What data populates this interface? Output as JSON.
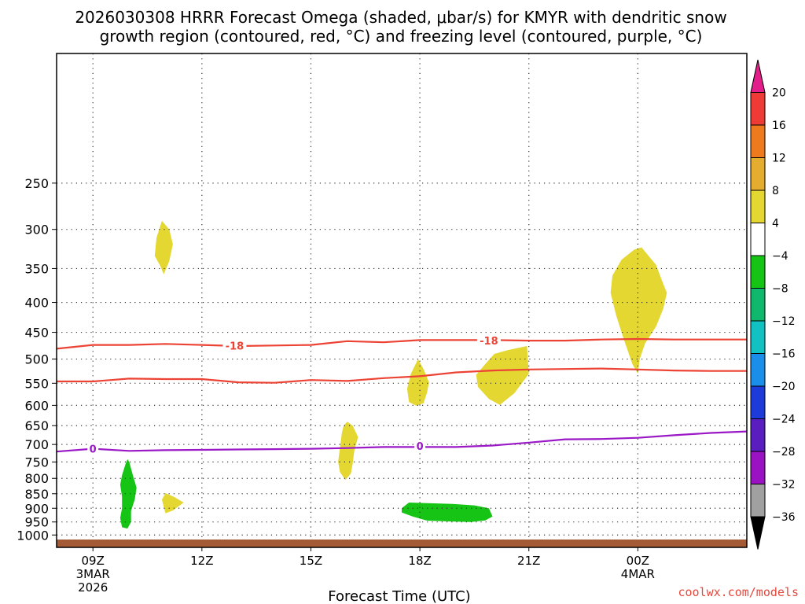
{
  "chart_data": {
    "type": "contour-timeheight",
    "title_lines": [
      "2026030308 HRRR Forecast Omega (shaded, μbar/s) for KMYR with dendritic snow",
      "growth region (contoured, red, °C) and freezing level (contoured, purple, °C)"
    ],
    "xlabel": "Forecast Time (UTC)",
    "credit": "coolwx.com/models",
    "x_range_hours": [
      8,
      27
    ],
    "x_ticks": [
      {
        "hour": 9,
        "lines": [
          "09Z",
          "3MAR",
          "2026"
        ]
      },
      {
        "hour": 12,
        "lines": [
          "12Z"
        ]
      },
      {
        "hour": 15,
        "lines": [
          "15Z"
        ]
      },
      {
        "hour": 18,
        "lines": [
          "18Z"
        ]
      },
      {
        "hour": 21,
        "lines": [
          "21Z"
        ]
      },
      {
        "hour": 24,
        "lines": [
          "00Z",
          "4MAR"
        ]
      }
    ],
    "y_range_hpa": [
      1050,
      150
    ],
    "y_ticks": [
      "250",
      "300",
      "350",
      "400",
      "450",
      "500",
      "550",
      "600",
      "650",
      "700",
      "750",
      "800",
      "850",
      "900",
      "950",
      "1000"
    ],
    "colorbar": {
      "labels": [
        "20",
        "16",
        "12",
        "8",
        "4",
        "-4",
        "-8",
        "-12",
        "-16",
        "-20",
        "-24",
        "-28",
        "-32",
        "-36"
      ],
      "colors": [
        "#e21e8a",
        "#ee3b36",
        "#ee7a1e",
        "#e5ad30",
        "#e4d732",
        "#ffffff",
        "#16c416",
        "#10b86e",
        "#12c2c2",
        "#1a8ee8",
        "#1c3bd8",
        "#5a1ec0",
        "#9a12c2",
        "#a0a0a0",
        "#000000"
      ]
    },
    "contours": [
      {
        "name": "isotherm-minus18-upper",
        "color": "#ec4335",
        "label": "-18",
        "label_points": [
          [
            12.9,
            474
          ],
          [
            19.9,
            465
          ]
        ],
        "points": [
          [
            8,
            480
          ],
          [
            9,
            473
          ],
          [
            10,
            473
          ],
          [
            11,
            471
          ],
          [
            12,
            473
          ],
          [
            13,
            475
          ],
          [
            14,
            474
          ],
          [
            15,
            473
          ],
          [
            16,
            466
          ],
          [
            17,
            468
          ],
          [
            18,
            464
          ],
          [
            19,
            464
          ],
          [
            20,
            464
          ],
          [
            21,
            465
          ],
          [
            22,
            465
          ],
          [
            23,
            463
          ],
          [
            24,
            462
          ],
          [
            25,
            463
          ],
          [
            26,
            463
          ],
          [
            27,
            463
          ]
        ]
      },
      {
        "name": "isotherm-minus12-lower",
        "color": "#ec4335",
        "points": [
          [
            8,
            546
          ],
          [
            9,
            546
          ],
          [
            10,
            540
          ],
          [
            11,
            541
          ],
          [
            12,
            541
          ],
          [
            13,
            548
          ],
          [
            14,
            549
          ],
          [
            15,
            543
          ],
          [
            16,
            545
          ],
          [
            17,
            539
          ],
          [
            18,
            535
          ],
          [
            19,
            527
          ],
          [
            20,
            523
          ],
          [
            21,
            521
          ],
          [
            22,
            520
          ],
          [
            23,
            519
          ],
          [
            24,
            521
          ],
          [
            25,
            523
          ],
          [
            26,
            524
          ],
          [
            27,
            524
          ]
        ]
      },
      {
        "name": "freezing-level-0c",
        "color": "#9a18c6",
        "label": "0",
        "label_points": [
          [
            9,
            712
          ],
          [
            18,
            704
          ]
        ],
        "points": [
          [
            8,
            720
          ],
          [
            9,
            712
          ],
          [
            10,
            718
          ],
          [
            11,
            716
          ],
          [
            12,
            715
          ],
          [
            13,
            714
          ],
          [
            14,
            713
          ],
          [
            15,
            712
          ],
          [
            16,
            710
          ],
          [
            17,
            707
          ],
          [
            18,
            707
          ],
          [
            19,
            707
          ],
          [
            20,
            703
          ],
          [
            21,
            695
          ],
          [
            22,
            686
          ],
          [
            23,
            685
          ],
          [
            24,
            682
          ],
          [
            25,
            675
          ],
          [
            26,
            669
          ],
          [
            27,
            665
          ]
        ]
      }
    ],
    "shaded_regions": [
      {
        "name": "omega-positive-300hpa",
        "value_range": "4 to 8",
        "color": "#e4d732",
        "points": [
          [
            10.9,
            290
          ],
          [
            11.1,
            300
          ],
          [
            11.2,
            318
          ],
          [
            11.1,
            340
          ],
          [
            10.95,
            358
          ],
          [
            10.85,
            346
          ],
          [
            10.7,
            333
          ],
          [
            10.75,
            310
          ]
        ]
      },
      {
        "name": "omega-positive-375hpa",
        "value_range": "4 to 8",
        "color": "#e4d732",
        "points": [
          [
            23.9,
            325
          ],
          [
            24.1,
            322
          ],
          [
            24.5,
            345
          ],
          [
            24.7,
            372
          ],
          [
            24.8,
            385
          ],
          [
            24.7,
            410
          ],
          [
            24.5,
            440
          ],
          [
            24.2,
            470
          ],
          [
            24.05,
            500
          ],
          [
            24.0,
            530
          ],
          [
            23.85,
            510
          ],
          [
            23.6,
            460
          ],
          [
            23.4,
            420
          ],
          [
            23.25,
            385
          ],
          [
            23.3,
            360
          ],
          [
            23.55,
            338
          ]
        ]
      },
      {
        "name": "omega-positive-540hpa-a",
        "value_range": "4 to 8",
        "color": "#e4d732",
        "points": [
          [
            17.95,
            500
          ],
          [
            18.1,
            520
          ],
          [
            18.25,
            548
          ],
          [
            18.2,
            570
          ],
          [
            18.1,
            595
          ],
          [
            17.9,
            601
          ],
          [
            17.7,
            592
          ],
          [
            17.65,
            562
          ],
          [
            17.75,
            530
          ]
        ]
      },
      {
        "name": "omega-positive-540hpa-b",
        "value_range": "4 to 8",
        "color": "#e4d732",
        "points": [
          [
            20.4,
            483
          ],
          [
            20.95,
            475
          ],
          [
            21.0,
            530
          ],
          [
            20.6,
            572
          ],
          [
            20.2,
            599
          ],
          [
            19.9,
            585
          ],
          [
            19.6,
            558
          ],
          [
            19.55,
            532
          ],
          [
            19.8,
            510
          ],
          [
            20.05,
            490
          ]
        ]
      },
      {
        "name": "omega-positive-720hpa",
        "value_range": "4 to 8",
        "color": "#e4d732",
        "points": [
          [
            16.0,
            640
          ],
          [
            16.15,
            650
          ],
          [
            16.3,
            680
          ],
          [
            16.2,
            715
          ],
          [
            16.15,
            755
          ],
          [
            16.1,
            785
          ],
          [
            15.95,
            805
          ],
          [
            15.8,
            780
          ],
          [
            15.75,
            750
          ],
          [
            15.8,
            710
          ],
          [
            15.85,
            670
          ],
          [
            15.9,
            650
          ]
        ]
      },
      {
        "name": "omega-positive-880hpa",
        "value_range": "4 to 8",
        "color": "#e4d732",
        "points": [
          [
            11.0,
            848
          ],
          [
            11.25,
            862
          ],
          [
            11.5,
            880
          ],
          [
            11.2,
            908
          ],
          [
            11.0,
            918
          ],
          [
            10.95,
            895
          ],
          [
            10.9,
            870
          ]
        ]
      },
      {
        "name": "omega-negative-850hpa",
        "value_range": "-4 to -8",
        "color": "#16c416",
        "points": [
          [
            9.95,
            742
          ],
          [
            10.0,
            750
          ],
          [
            10.1,
            790
          ],
          [
            10.2,
            830
          ],
          [
            10.15,
            870
          ],
          [
            10.05,
            910
          ],
          [
            10.05,
            950
          ],
          [
            9.95,
            975
          ],
          [
            9.8,
            970
          ],
          [
            9.75,
            935
          ],
          [
            9.8,
            900
          ],
          [
            9.8,
            860
          ],
          [
            9.75,
            820
          ],
          [
            9.8,
            790
          ],
          [
            9.9,
            755
          ]
        ]
      },
      {
        "name": "omega-negative-910hpa",
        "value_range": "-4 to -8",
        "color": "#16c416",
        "points": [
          [
            17.7,
            880
          ],
          [
            18.2,
            882
          ],
          [
            18.9,
            885
          ],
          [
            19.5,
            890
          ],
          [
            19.9,
            900
          ],
          [
            20.0,
            930
          ],
          [
            19.8,
            944
          ],
          [
            19.4,
            950
          ],
          [
            18.8,
            948
          ],
          [
            18.2,
            945
          ],
          [
            17.8,
            930
          ],
          [
            17.5,
            915
          ],
          [
            17.5,
            900
          ]
        ]
      }
    ],
    "terrain": {
      "color": "#a45a34",
      "surface_hpa": 1018
    }
  }
}
